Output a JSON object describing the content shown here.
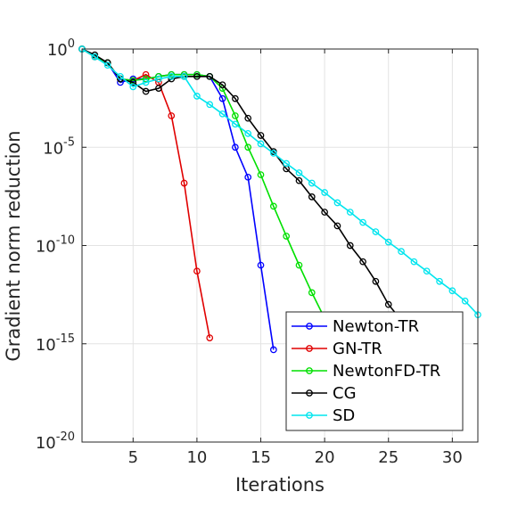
{
  "chart_data": {
    "type": "line",
    "title": "",
    "xlabel": "Iterations",
    "ylabel": "Gradient norm reduction",
    "xscale": "linear",
    "yscale": "log",
    "xlim": [
      1,
      32
    ],
    "ylim": [
      1e-20,
      1
    ],
    "xticks": [
      5,
      10,
      15,
      20,
      25,
      30
    ],
    "yticks": [
      {
        "value": 1,
        "base": "10",
        "exp": "0"
      },
      {
        "value": 1e-05,
        "base": "10",
        "exp": "-5"
      },
      {
        "value": 1e-10,
        "base": "10",
        "exp": "-10"
      },
      {
        "value": 1e-15,
        "base": "10",
        "exp": "-15"
      },
      {
        "value": 1e-20,
        "base": "10",
        "exp": "-20"
      }
    ],
    "grid": true,
    "legend_position": "bottom-right",
    "series": [
      {
        "name": "Newton-TR",
        "color": "#0000ff",
        "x": [
          1,
          2,
          3,
          4,
          5,
          6,
          7,
          8,
          9,
          10,
          11,
          12,
          13,
          14,
          15,
          16
        ],
        "y": [
          1,
          0.4,
          0.2,
          0.02,
          0.03,
          0.03,
          0.04,
          0.05,
          0.05,
          0.05,
          0.04,
          0.003,
          1e-05,
          3e-07,
          1e-11,
          5e-16
        ]
      },
      {
        "name": "GN-TR",
        "color": "#e00000",
        "x": [
          1,
          2,
          3,
          4,
          5,
          6,
          7,
          8,
          9,
          10,
          11
        ],
        "y": [
          1,
          0.4,
          0.2,
          0.03,
          0.025,
          0.05,
          0.02,
          0.0004,
          1.5e-07,
          5e-12,
          2e-15
        ]
      },
      {
        "name": "NewtonFD-TR",
        "color": "#00e000",
        "x": [
          1,
          2,
          3,
          4,
          5,
          6,
          7,
          8,
          9,
          10,
          11,
          12,
          13,
          14,
          15,
          16,
          17,
          18,
          19,
          20
        ],
        "y": [
          1,
          0.4,
          0.2,
          0.03,
          0.025,
          0.03,
          0.04,
          0.05,
          0.05,
          0.05,
          0.04,
          0.01,
          0.0004,
          1e-05,
          4e-07,
          1e-08,
          3e-10,
          1e-11,
          4e-13,
          2e-14
        ]
      },
      {
        "name": "CG",
        "color": "#000000",
        "x": [
          1,
          2,
          3,
          4,
          5,
          6,
          7,
          8,
          9,
          10,
          11,
          12,
          13,
          14,
          15,
          16,
          17,
          18,
          19,
          20,
          21,
          22,
          23,
          24,
          25,
          26
        ],
        "y": [
          1,
          0.5,
          0.2,
          0.03,
          0.02,
          0.007,
          0.01,
          0.03,
          0.04,
          0.04,
          0.04,
          0.015,
          0.003,
          0.0003,
          4e-05,
          6e-06,
          8e-07,
          2e-07,
          3e-08,
          5e-09,
          1e-09,
          1e-10,
          1.5e-11,
          1.5e-12,
          1e-13,
          1.6e-14
        ]
      },
      {
        "name": "SD",
        "color": "#00e5ee",
        "x": [
          1,
          2,
          3,
          4,
          5,
          6,
          7,
          8,
          9,
          10,
          11,
          12,
          13,
          14,
          15,
          16,
          17,
          18,
          19,
          20,
          21,
          22,
          23,
          24,
          25,
          26,
          27,
          28,
          29,
          30,
          31,
          32
        ],
        "y": [
          1,
          0.4,
          0.15,
          0.04,
          0.012,
          0.02,
          0.03,
          0.04,
          0.04,
          0.004,
          0.0015,
          0.0005,
          0.00015,
          5e-05,
          1.5e-05,
          5e-06,
          1.5e-06,
          5e-07,
          1.5e-07,
          5e-08,
          1.5e-08,
          5e-09,
          1.5e-09,
          5e-10,
          1.5e-10,
          5e-11,
          1.5e-11,
          5e-12,
          1.5e-12,
          5e-13,
          1.5e-13,
          3e-14
        ]
      }
    ]
  }
}
